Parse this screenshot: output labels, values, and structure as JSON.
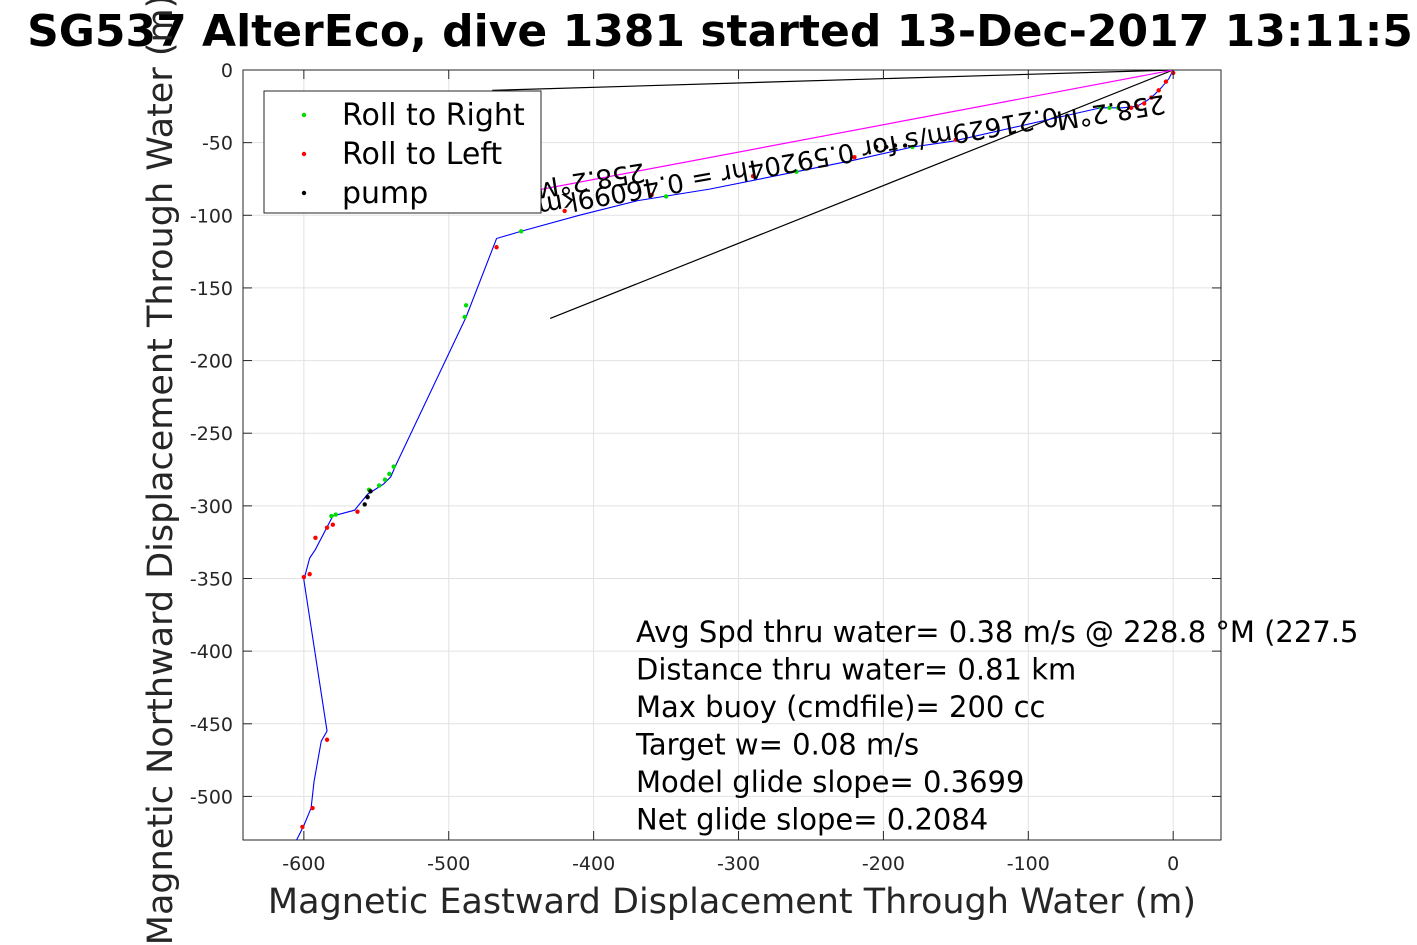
{
  "chart_data": {
    "type": "line",
    "title": "SG537 AlterEco, dive 1381 started 13-Dec-2017 13:11:5",
    "xlabel": "Magnetic Eastward Displacement Through Water (m)",
    "ylabel": "Magnetic Northward Displacement Through Water (m)",
    "xlim": [
      -642,
      33
    ],
    "ylim": [
      -530,
      0
    ],
    "xticks": [
      -600,
      -500,
      -400,
      -300,
      -200,
      -100,
      0
    ],
    "yticks": [
      0,
      -50,
      -100,
      -150,
      -200,
      -250,
      -300,
      -350,
      -400,
      -450,
      -500
    ],
    "grid": true,
    "legend_position": "top-left",
    "colors": {
      "track": "#0000ff",
      "roll_right": "#00dd00",
      "roll_left": "#ff0000",
      "pump": "#000000",
      "surface_line": "#000000",
      "magenta": "#ff00ff"
    },
    "legend": [
      {
        "label": "Roll to Right",
        "color": "#00dd00"
      },
      {
        "label": "Roll to Left",
        "color": "#ff0000"
      },
      {
        "label": "pump",
        "color": "#000000"
      }
    ],
    "series": [
      {
        "name": "track",
        "x": [
          0,
          -3,
          -8,
          -13,
          -18,
          -25,
          -35,
          -50,
          -152,
          -180,
          -220,
          -260,
          -320,
          -370,
          -410,
          -450,
          -467,
          -488,
          -537,
          -540,
          -545,
          -556,
          -565,
          -580,
          -592,
          -596,
          -600,
          -584,
          -588,
          -593,
          -595,
          -600,
          -605
        ],
        "y": [
          0,
          -6,
          -12,
          -17,
          -21,
          -25,
          -26,
          -26,
          -49,
          -53,
          -62,
          -70,
          -82,
          -90,
          -100,
          -111,
          -116,
          -170,
          -273,
          -280,
          -285,
          -292,
          -303,
          -307,
          -330,
          -336,
          -351,
          -455,
          -462,
          -490,
          -508,
          -520,
          -530
        ]
      },
      {
        "name": "Roll to Right",
        "x": [
          -38,
          -44,
          -50,
          -180,
          -260,
          -350,
          -450,
          -488,
          -489,
          -538,
          -541,
          -544,
          -548,
          -555,
          -578,
          -581
        ],
        "y": [
          -26,
          -26,
          -26,
          -53,
          -70,
          -87,
          -111,
          -162,
          -170,
          -273,
          -278,
          -282,
          -286,
          -289,
          -306,
          -307
        ],
        "dot": true
      },
      {
        "name": "Roll to Left",
        "x": [
          0,
          -5,
          -10,
          -15,
          -20,
          -25,
          -29,
          -150,
          -220,
          -290,
          -360,
          -420,
          -467,
          -563,
          -580,
          -584,
          -592,
          -596,
          -600,
          -584,
          -594,
          -601
        ],
        "y": [
          -2,
          -8,
          -14,
          -19,
          -23,
          -25,
          -26,
          -48,
          -60,
          -73,
          -86,
          -97,
          -122,
          -304,
          -313,
          -315,
          -322,
          -347,
          -349,
          -461,
          -508,
          -521
        ],
        "dot": true
      },
      {
        "name": "pump",
        "x": [
          -185,
          -192,
          -198,
          -205,
          -554,
          -556,
          -558
        ],
        "y": [
          -52,
          -52,
          -53,
          -53,
          -290,
          -294,
          -299
        ],
        "dot": true
      }
    ],
    "lines": [
      {
        "name": "surface-to-surface",
        "x": [
          0,
          -430
        ],
        "y": [
          0,
          -171
        ],
        "color": "#000000"
      },
      {
        "name": "current-vector",
        "x": [
          0,
          -470
        ],
        "y": [
          0,
          -14
        ],
        "color": "#000000"
      },
      {
        "name": "dive-heading",
        "x": [
          0,
          -515
        ],
        "y": [
          0,
          -97
        ],
        "color": "#ff00ff"
      }
    ],
    "annotations": [
      {
        "text": "258.2°M",
        "rotation": 171,
        "x": -44,
        "y": -23
      },
      {
        "text": "0.21629m/s for 0.59204hr = 0.46099km",
        "rotation": 170,
        "x": -260,
        "y": -57
      },
      {
        "text": "258.2°M",
        "rotation": 171,
        "x": -403,
        "y": -70
      }
    ],
    "stats": [
      "Avg Spd thru water=  0.38 m/s @ 228.8 °M (227.5",
      "Distance thru water=  0.81 km",
      "Max buoy (cmdfile)= 200 cc",
      "Target w= 0.08 m/s",
      "Model glide slope= 0.3699",
      "Net glide slope= 0.2084"
    ]
  }
}
